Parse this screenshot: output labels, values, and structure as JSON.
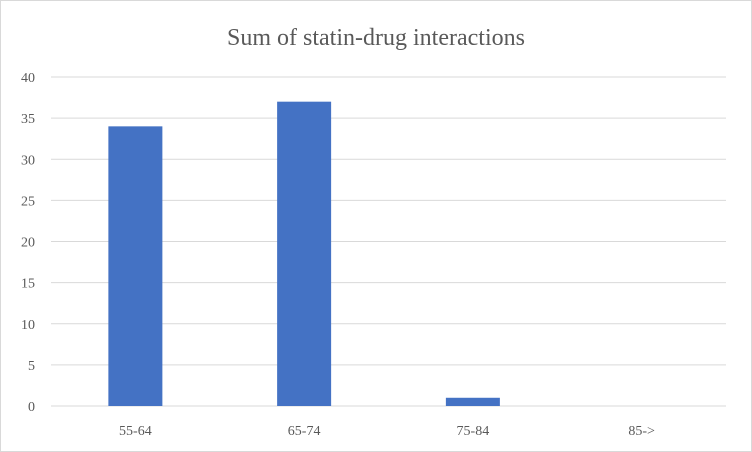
{
  "chart_data": {
    "type": "bar",
    "title": "Sum of statin-drug  interactions",
    "categories": [
      "55-64",
      "65-74",
      "75-84",
      "85->"
    ],
    "values": [
      34,
      37,
      1,
      0
    ],
    "xlabel": "",
    "ylabel": "",
    "ylim": [
      0,
      40
    ],
    "yticks": [
      0,
      5,
      10,
      15,
      20,
      25,
      30,
      35,
      40
    ],
    "grid": true,
    "legend": "none",
    "bar_color": "#4472C4"
  }
}
